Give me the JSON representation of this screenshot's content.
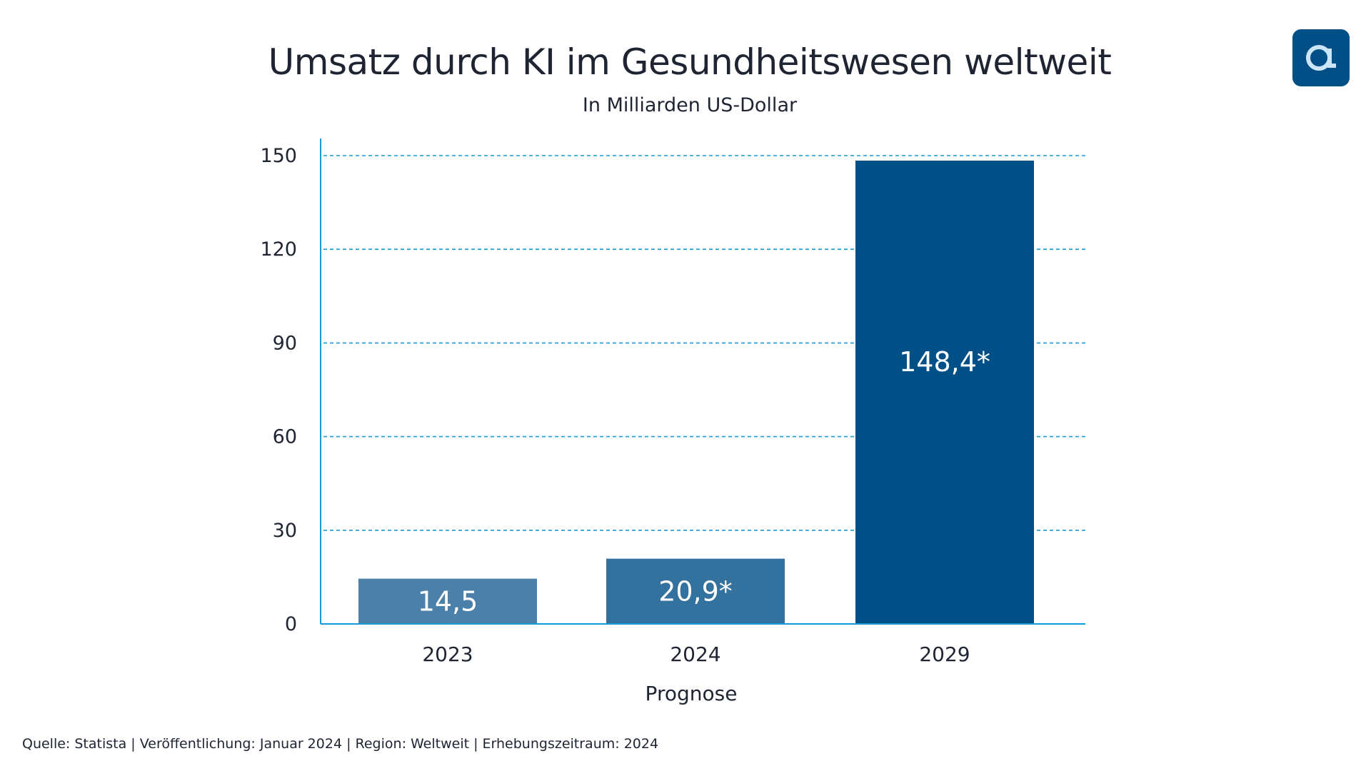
{
  "title": "Umsatz durch KI im Gesundheitswesen weltweit",
  "subtitle": "In Milliarden US-Dollar",
  "source": "Quelle: Statista | Veröffentlichung: Januar 2024 | Region: Weltweit | Erhebungszeitraum: 2024",
  "logo": {
    "icon": "a-dot-logo",
    "color": "#004f86",
    "glyph_color": "#cbe6fa"
  },
  "chart_data": {
    "type": "bar",
    "title": "Umsatz durch KI im Gesundheitswesen weltweit",
    "subtitle": "In Milliarden US-Dollar",
    "categories": [
      "2023",
      "2024",
      "2029"
    ],
    "values": [
      14.5,
      20.9,
      148.4
    ],
    "data_labels": [
      "14,5",
      "20,9*",
      "148,4*"
    ],
    "bar_colors": [
      "#4a80a9",
      "#33729e",
      "#004f86"
    ],
    "xlabel": "Prognose",
    "ylabel": "",
    "ylim": [
      0,
      150
    ],
    "yticks": [
      0,
      30,
      60,
      90,
      120,
      150
    ],
    "ytick_labels": [
      "0",
      "30",
      "60",
      "90",
      "120",
      "150"
    ],
    "grid": true,
    "grid_color": "#1a9ad6"
  }
}
